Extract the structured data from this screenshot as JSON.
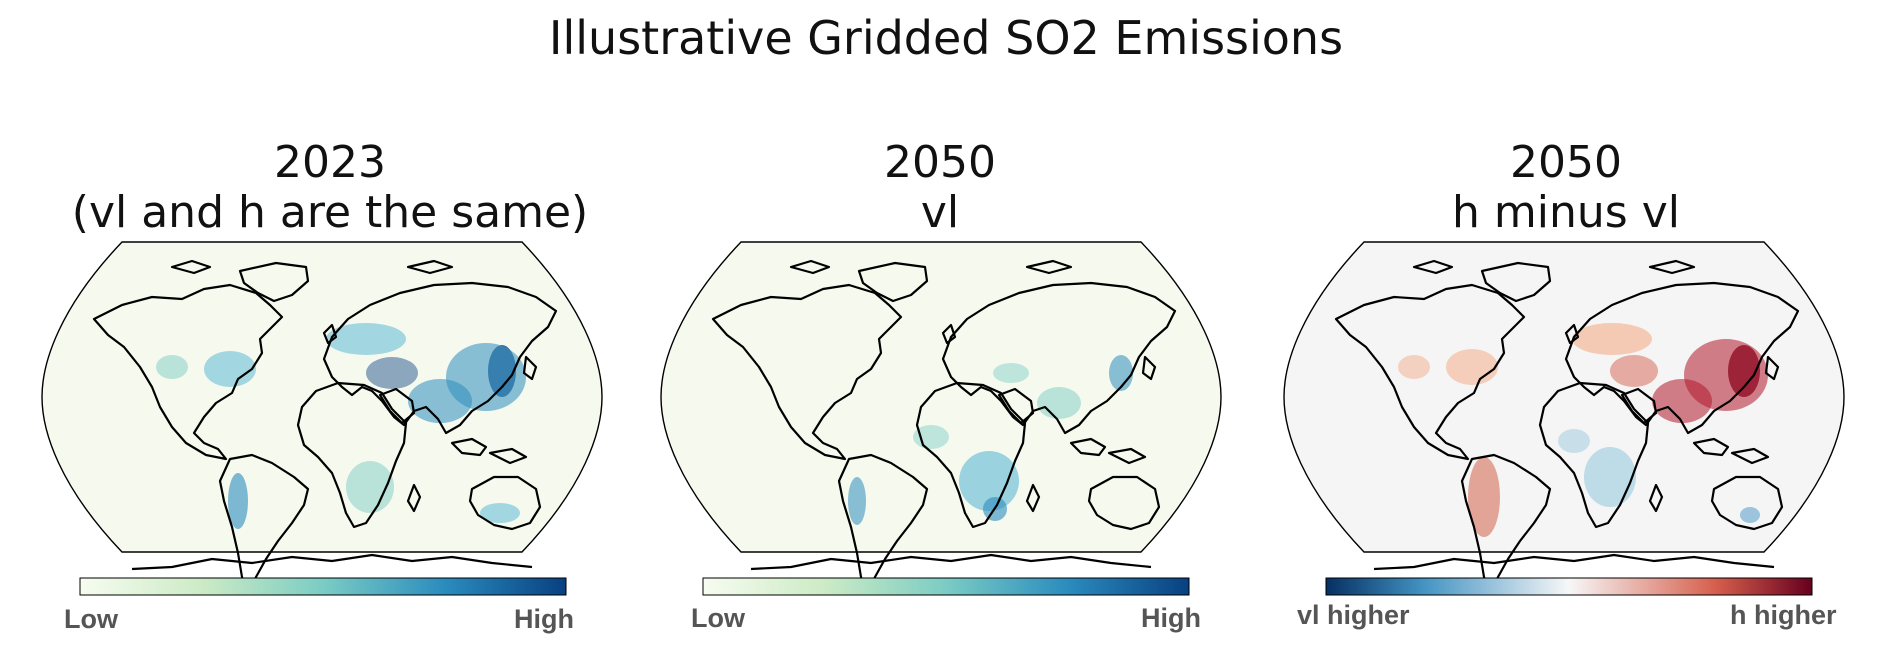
{
  "title": "Illustrative Gridded SO2 Emissions",
  "colors": {
    "land_outline": "#000000",
    "greenblue_low": "#f7fcf0",
    "greenblue_high": "#084081",
    "diverging_low": "#053061",
    "diverging_mid": "#f7f7f7",
    "diverging_high": "#67001f"
  },
  "chart_data": [
    {
      "type": "heatmap",
      "projection": "Robinson (global map)",
      "title": [
        "2023",
        "(vl and h are the same)"
      ],
      "colormap": "GnBu",
      "colorbar": {
        "low_label": "Low",
        "high_label": "High"
      },
      "hotspots": [
        "East Asia",
        "South Asia",
        "Europe",
        "Middle East",
        "eastern North America",
        "western South America",
        "southern Africa"
      ]
    },
    {
      "type": "heatmap",
      "projection": "Robinson (global map)",
      "title": [
        "2050",
        "vl"
      ],
      "colormap": "GnBu",
      "colorbar": {
        "low_label": "Low",
        "high_label": "High"
      },
      "hotspots": [
        "southern Africa",
        "East Asia",
        "western South America",
        "South Asia"
      ]
    },
    {
      "type": "heatmap",
      "projection": "Robinson (global map)",
      "title": [
        "2050",
        "h minus vl"
      ],
      "colormap": "RdBu_r (diverging)",
      "colorbar": {
        "low_label": "vl higher",
        "high_label": "h higher"
      },
      "hotspots": [
        "East Asia (h higher)",
        "South Asia (h higher)",
        "Europe (h higher)",
        "South America (h higher)",
        "central/southern Africa (vl higher)"
      ]
    }
  ]
}
